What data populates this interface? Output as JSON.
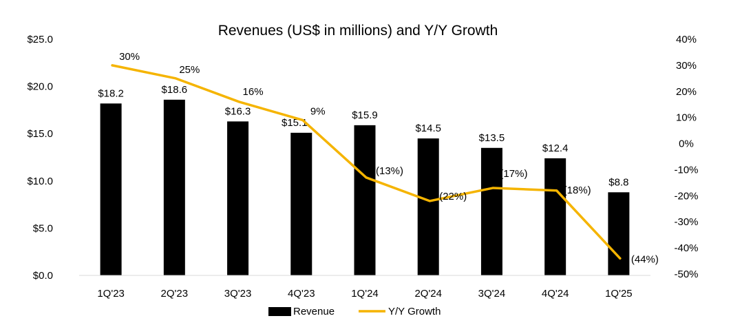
{
  "chart_data": {
    "type": "bar+line",
    "title": "Revenues (US$ in millions) and Y/Y Growth",
    "categories": [
      "1Q'23",
      "2Q'23",
      "3Q'23",
      "4Q'23",
      "1Q'24",
      "2Q'24",
      "3Q'24",
      "4Q'24",
      "1Q'25"
    ],
    "series": [
      {
        "name": "Revenue",
        "type": "bar",
        "axis": "left",
        "color": "#000000",
        "values": [
          18.2,
          18.6,
          16.3,
          15.1,
          15.9,
          14.5,
          13.5,
          12.4,
          8.8
        ],
        "labels": [
          "$18.2",
          "$18.6",
          "$16.3",
          "$15.1",
          "$15.9",
          "$14.5",
          "$13.5",
          "$12.4",
          "$8.8"
        ]
      },
      {
        "name": "Y/Y Growth",
        "type": "line",
        "axis": "right",
        "color": "#F5B400",
        "values": [
          30,
          25,
          16,
          9,
          -13,
          -22,
          -17,
          -18,
          -44
        ],
        "labels": [
          "30%",
          "25%",
          "16%",
          "9%",
          "(13%)",
          "(22%)",
          "(17%)",
          "(18%)",
          "(44%)"
        ]
      }
    ],
    "y_left": {
      "min": 0,
      "max": 25,
      "ticks": [
        0,
        5,
        10,
        15,
        20,
        25
      ],
      "tick_labels": [
        "$0.0",
        "$5.0",
        "$10.0",
        "$15.0",
        "$20.0",
        "$25.0"
      ]
    },
    "y_right": {
      "min": -50,
      "max": 40,
      "ticks": [
        40,
        30,
        20,
        10,
        0,
        -10,
        -20,
        -30,
        -40,
        -50
      ],
      "tick_labels": [
        "40%",
        "30%",
        "20%",
        "10%",
        "0%",
        "-10%",
        "-20%",
        "-30%",
        "-40%",
        "-50%"
      ]
    },
    "grid": false,
    "legend": "bottom"
  }
}
